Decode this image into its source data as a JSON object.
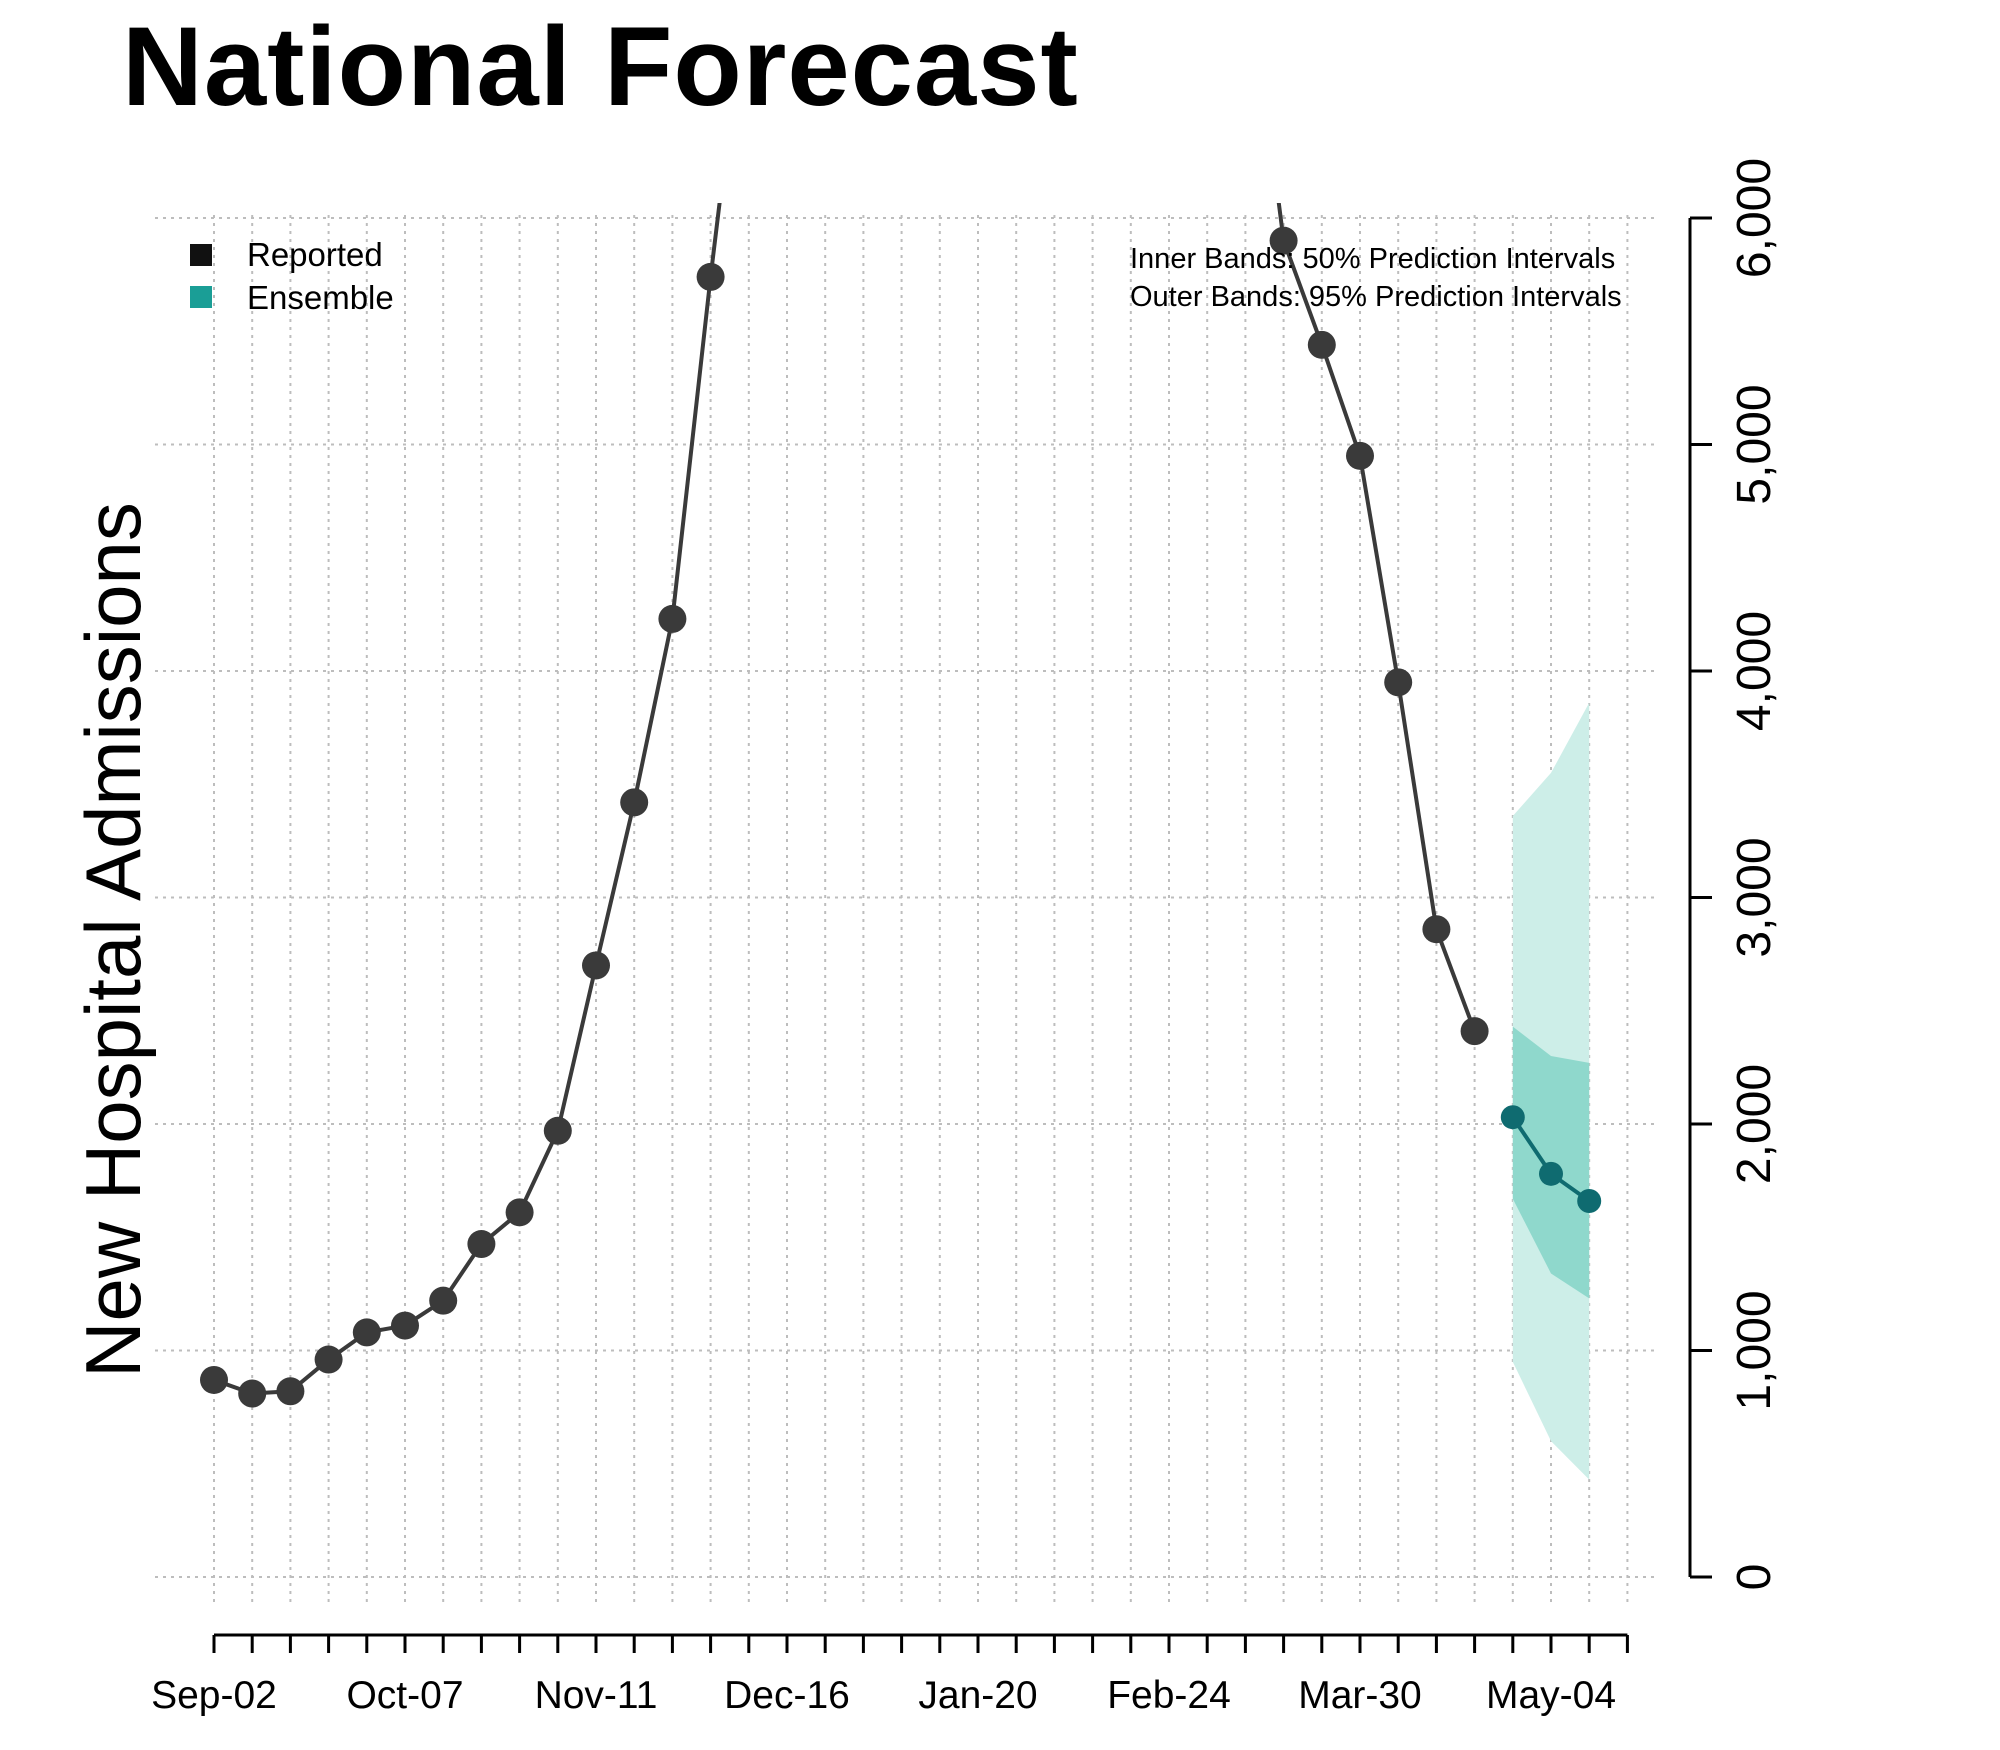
{
  "title": "National Forecast",
  "chart_data": {
    "type": "line",
    "title": "National Forecast",
    "xlabel": "",
    "ylabel": "New Hospital Admissions",
    "ylim": [
      0,
      6000
    ],
    "yticks": [
      0,
      1000,
      2000,
      3000,
      4000,
      5000,
      6000
    ],
    "ytick_labels": [
      "0",
      "1,000",
      "2,000",
      "3,000",
      "4,000",
      "5,000",
      "6,000"
    ],
    "x_dates": [
      "Sep-02",
      "Sep-09",
      "Sep-16",
      "Sep-23",
      "Sep-30",
      "Oct-07",
      "Oct-14",
      "Oct-21",
      "Oct-28",
      "Nov-04",
      "Nov-11",
      "Nov-18",
      "Nov-25",
      "Dec-02",
      "Dec-09",
      "Dec-16",
      "Dec-23",
      "Dec-30",
      "Jan-06",
      "Jan-13",
      "Jan-20",
      "Jan-27",
      "Feb-03",
      "Feb-10",
      "Feb-17",
      "Feb-24",
      "Mar-02",
      "Mar-09",
      "Mar-16",
      "Mar-23",
      "Mar-30",
      "Apr-06",
      "Apr-13",
      "Apr-20",
      "Apr-27",
      "May-04",
      "May-11",
      "May-18"
    ],
    "xtick_labels": [
      "Sep-02",
      "Oct-07",
      "Nov-11",
      "Dec-16",
      "Jan-20",
      "Feb-24",
      "Mar-30",
      "May-04"
    ],
    "grid": true,
    "legend_placement": "top-left",
    "series": [
      {
        "name": "Reported",
        "color": "#3a3a3a",
        "points": [
          [
            "Sep-02",
            870
          ],
          [
            "Sep-09",
            810
          ],
          [
            "Sep-16",
            820
          ],
          [
            "Sep-23",
            960
          ],
          [
            "Sep-30",
            1080
          ],
          [
            "Oct-07",
            1110
          ],
          [
            "Oct-14",
            1220
          ],
          [
            "Oct-21",
            1470
          ],
          [
            "Oct-28",
            1610
          ],
          [
            "Nov-04",
            1970
          ],
          [
            "Nov-11",
            2700
          ],
          [
            "Nov-18",
            3420
          ],
          [
            "Nov-25",
            4230
          ],
          [
            "Dec-02",
            5740
          ],
          [
            "Mar-16",
            5900
          ],
          [
            "Mar-23",
            5440
          ],
          [
            "Mar-30",
            4950
          ],
          [
            "Apr-06",
            3950
          ],
          [
            "Apr-13",
            2860
          ],
          [
            "Apr-20",
            2410
          ]
        ]
      },
      {
        "name": "Ensemble",
        "color": "#0f6b70",
        "points": [
          [
            "Apr-27",
            2030
          ],
          [
            "May-04",
            1780
          ],
          [
            "May-11",
            1660
          ]
        ],
        "pi50": [
          [
            "Apr-27",
            1670,
            2430
          ],
          [
            "May-04",
            1340,
            2300
          ],
          [
            "May-11",
            1230,
            2270
          ]
        ],
        "pi95": [
          [
            "Apr-27",
            950,
            3360
          ],
          [
            "May-04",
            600,
            3550
          ],
          [
            "May-11",
            430,
            3860
          ]
        ]
      }
    ],
    "legend": [
      {
        "label": "Reported",
        "color": "#111111"
      },
      {
        "label": "Ensemble",
        "color": "#1a9e96"
      }
    ],
    "band_notes": [
      "Inner Bands: 50% Prediction Intervals",
      "Outer Bands: 95% Prediction Intervals"
    ],
    "colors": {
      "pi50": "#8fd8cc",
      "pi95": "#cdeee8",
      "grid": "#bdbdbd",
      "axis": "#000000"
    }
  }
}
